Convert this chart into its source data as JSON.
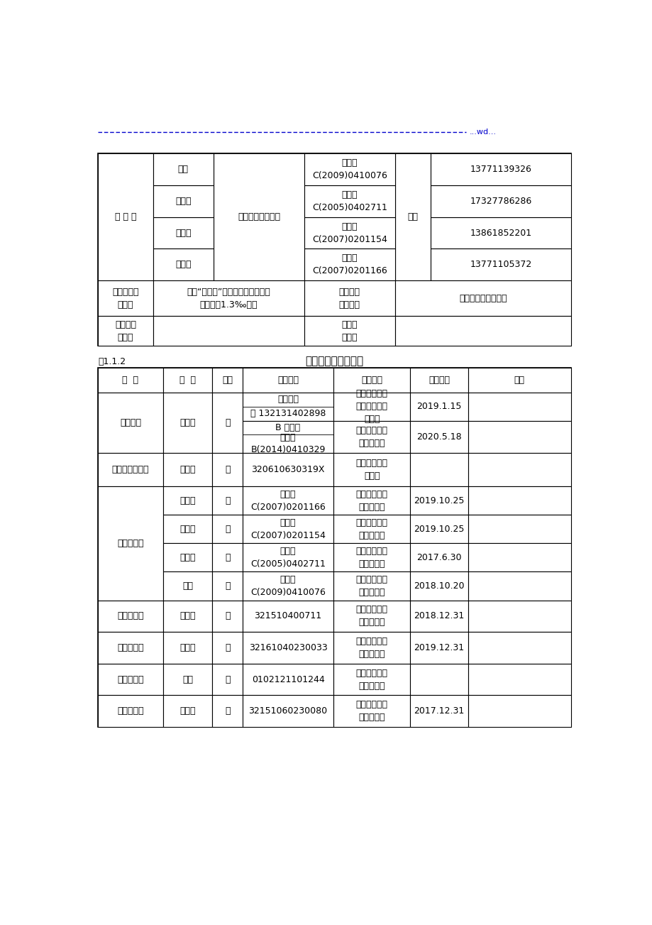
{
  "dashed_line_text": "...wd...",
  "table2_label": "表1.1.2",
  "table2_title": "工程部管理人员名册",
  "bg_color": "#ffffff",
  "border_color": "#000000",
  "text_color": "#000000",
  "dashed_color": "#0000cc",
  "names_t1": [
    "杨继昌",
    "周宗糠",
    "杨志兵",
    "吕超"
  ],
  "certs_t1": [
    "苏建安\nC(2007)0201166",
    "苏建安\nC(2007)0201154",
    "苏建安\nC(2005)0402711",
    "苏建安\nC(2009)0410076"
  ],
  "phones_t1": [
    "13771105372",
    "13861852201",
    "17327786286",
    "13771139326"
  ],
  "mgmt_text": "五个“不发生”、事故直接经济损失\n率控制在1.3‰以内",
  "t2_headers": [
    "岗  位",
    "姓  名",
    "性别",
    "证书编号",
    "发证单位",
    "有效时间",
    "备注"
  ],
  "safe_names": [
    "杨继昌",
    "周宗糠",
    "杨志兵",
    "吕超"
  ],
  "safe_certs": [
    "苏建安\nC(2007)0201166",
    "苏建安\nC(2007)0201154",
    "苏建安\nC(2005)0402711",
    "苏建安\nC(2009)0410076"
  ],
  "safe_valid": [
    "2019.10.25",
    "2019.10.25",
    "2017.6.30",
    "2018.10.20"
  ],
  "shi_data": [
    [
      "工程施工员",
      "彭袁迪",
      "321510400711",
      "2018.12.31"
    ],
    [
      "工程施工员",
      "陈小虎",
      "32161040230033",
      "2019.12.31"
    ],
    [
      "工程施工员",
      "戴康",
      "0102121101244",
      ""
    ]
  ]
}
